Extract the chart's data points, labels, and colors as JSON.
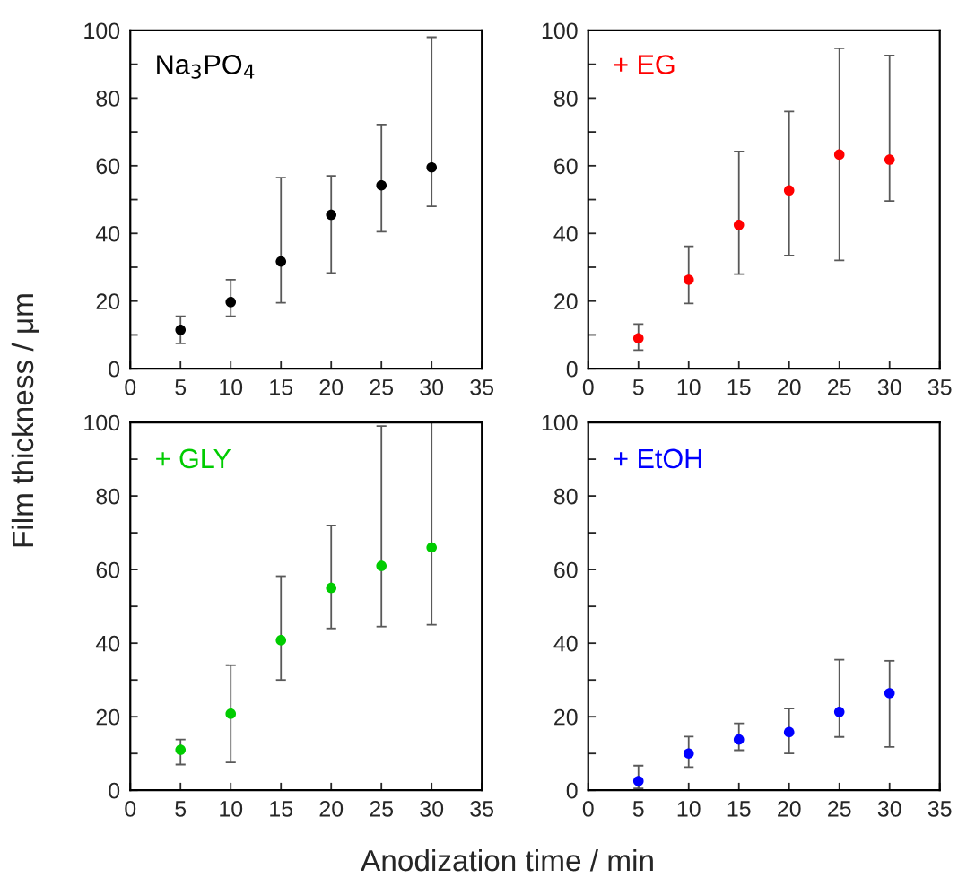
{
  "chart_data": [
    {
      "type": "scatter",
      "x": [
        5,
        10,
        15,
        20,
        25,
        30
      ],
      "xlabel": "Anodization time / min",
      "ylabel": "Film thickness / μm",
      "xlim": [
        0,
        35
      ],
      "ylim": [
        0,
        100
      ],
      "xticks": [
        0,
        5,
        10,
        15,
        20,
        25,
        30,
        35
      ],
      "yticks": [
        0,
        {
          "value": 10,
          "label": null
        },
        20,
        {
          "value": 30,
          "label": null
        },
        40,
        {
          "value": 50,
          "label": null
        },
        60,
        {
          "value": 70,
          "label": null
        },
        80,
        {
          "value": 90,
          "label": null
        },
        100
      ],
      "marker": "circle",
      "grid": false,
      "series": [
        {
          "name": "Na$_{3}$PO$_{4}$",
          "color": "#000000",
          "values": [
            11.5,
            19.7,
            31.7,
            45.5,
            54.2,
            59.5
          ],
          "errors": [
            [
              7.5,
              15.5
            ],
            [
              15.5,
              26.3
            ],
            [
              19.5,
              56.5
            ],
            [
              28.3,
              57
            ],
            [
              40.5,
              72.2
            ],
            [
              48,
              98
            ]
          ]
        }
      ]
    },
    {
      "type": "scatter",
      "x": [
        5,
        10,
        15,
        20,
        25,
        30
      ],
      "xlim": [
        0,
        35
      ],
      "ylim": [
        0,
        100
      ],
      "xticks": [
        0,
        5,
        10,
        15,
        20,
        25,
        30,
        35
      ],
      "yticks": [
        0,
        {
          "value": 10,
          "label": null
        },
        20,
        {
          "value": 30,
          "label": null
        },
        40,
        {
          "value": 50,
          "label": null
        },
        60,
        {
          "value": 70,
          "label": null
        },
        80,
        {
          "value": 90,
          "label": null
        },
        100
      ],
      "marker": "circle",
      "grid": false,
      "series": [
        {
          "name": "+ EG",
          "color": "#ff0000",
          "values": [
            9,
            26.3,
            42.5,
            52.7,
            63.3,
            61.8
          ],
          "errors": [
            [
              5.5,
              13.2
            ],
            [
              19.3,
              36.2
            ],
            [
              28,
              64.2
            ],
            [
              33.5,
              76
            ],
            [
              32,
              94.7
            ],
            [
              49.6,
              92.6
            ]
          ]
        }
      ]
    },
    {
      "type": "scatter",
      "x": [
        5,
        10,
        15,
        20,
        25,
        30
      ],
      "xlim": [
        0,
        35
      ],
      "ylim": [
        0,
        100
      ],
      "xticks": [
        0,
        5,
        10,
        15,
        20,
        25,
        30,
        35
      ],
      "yticks": [
        0,
        {
          "value": 10,
          "label": null
        },
        20,
        {
          "value": 30,
          "label": null
        },
        40,
        {
          "value": 50,
          "label": null
        },
        60,
        {
          "value": 70,
          "label": null
        },
        80,
        {
          "value": 90,
          "label": null
        },
        100
      ],
      "marker": "circle",
      "grid": false,
      "series": [
        {
          "name": "+ GLY",
          "color": "#00cc00",
          "values": [
            11,
            20.8,
            40.8,
            55,
            61,
            66
          ],
          "errors": [
            [
              7,
              13.8
            ],
            [
              7.6,
              34
            ],
            [
              30,
              58.2
            ],
            [
              44,
              72
            ],
            [
              44.5,
              99
            ],
            [
              45,
              100
            ]
          ]
        }
      ]
    },
    {
      "type": "scatter",
      "x": [
        5,
        10,
        15,
        20,
        25,
        30
      ],
      "xlim": [
        0,
        35
      ],
      "ylim": [
        0,
        100
      ],
      "xticks": [
        0,
        5,
        10,
        15,
        20,
        25,
        30,
        35
      ],
      "yticks": [
        0,
        {
          "value": 10,
          "label": null
        },
        20,
        {
          "value": 30,
          "label": null
        },
        40,
        {
          "value": 50,
          "label": null
        },
        60,
        {
          "value": 70,
          "label": null
        },
        80,
        {
          "value": 90,
          "label": null
        },
        100
      ],
      "marker": "circle",
      "grid": false,
      "series": [
        {
          "name": "+ EtOH",
          "color": "#0000ff",
          "values": [
            2.5,
            10,
            13.8,
            15.8,
            21.3,
            26.4
          ],
          "errors": [
            [
              0.5,
              6.7
            ],
            [
              6.3,
              14.6
            ],
            [
              10.9,
              18.2
            ],
            [
              10,
              22.2
            ],
            [
              14.5,
              35.5
            ],
            [
              11.8,
              35.2
            ]
          ]
        }
      ]
    }
  ]
}
